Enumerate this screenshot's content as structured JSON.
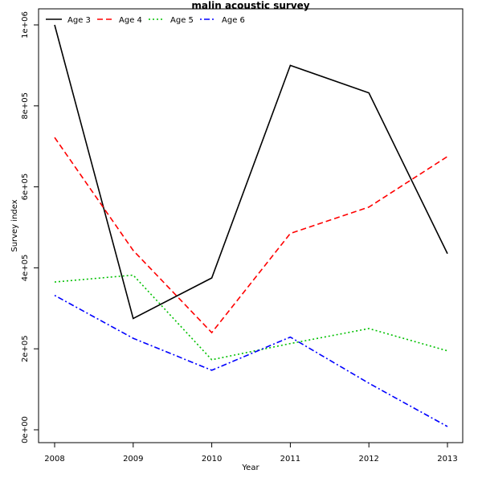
{
  "chart_data": {
    "type": "line",
    "title": "malin  acoustic survey",
    "xlabel": "Year",
    "ylabel": "Survey index",
    "x": [
      2008,
      2009,
      2010,
      2011,
      2012,
      2013
    ],
    "xlim": [
      2008,
      2013
    ],
    "ylim": [
      0,
      1000000
    ],
    "x_ticks": [
      "2008",
      "2009",
      "2010",
      "2011",
      "2012",
      "2013"
    ],
    "y_ticks": [
      {
        "value": 0,
        "label": "0e+00"
      },
      {
        "value": 200000,
        "label": "2e+05"
      },
      {
        "value": 400000,
        "label": "4e+05"
      },
      {
        "value": 600000,
        "label": "6e+05"
      },
      {
        "value": 800000,
        "label": "8e+05"
      },
      {
        "value": 1000000,
        "label": "1e+06"
      }
    ],
    "grid": false,
    "legend_position": "top-left",
    "series": [
      {
        "name": "Age 3",
        "color": "#000000",
        "dash": "solid",
        "values": [
          1000000,
          275000,
          375000,
          900000,
          832000,
          435000
        ]
      },
      {
        "name": "Age 4",
        "color": "#ff0000",
        "dash": "dashed",
        "values": [
          722000,
          443000,
          240000,
          485000,
          550000,
          675000
        ]
      },
      {
        "name": "Age 5",
        "color": "#00c000",
        "dash": "dotted",
        "values": [
          365000,
          382000,
          173000,
          213000,
          250000,
          195000
        ]
      },
      {
        "name": "Age 6",
        "color": "#0000ff",
        "dash": "dotdash",
        "values": [
          332000,
          226000,
          147000,
          229000,
          115000,
          8000
        ]
      }
    ]
  }
}
